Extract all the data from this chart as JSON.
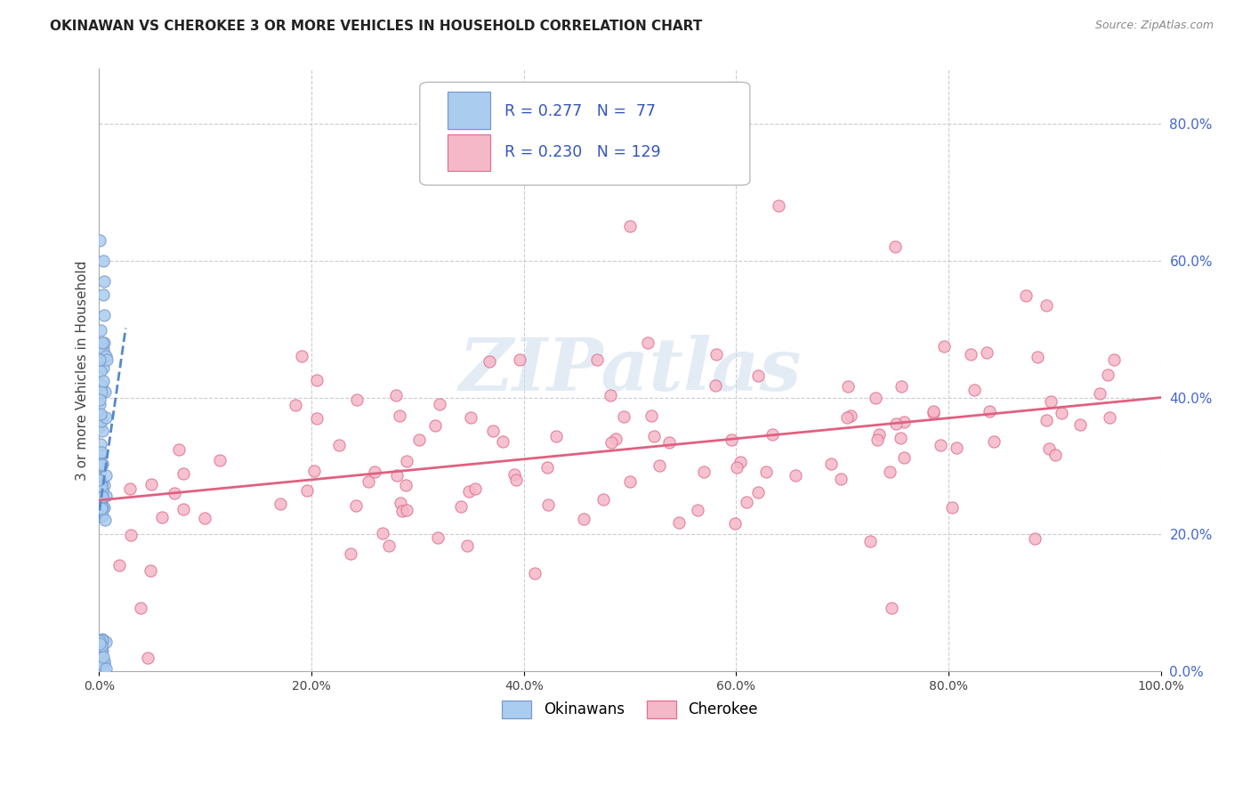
{
  "title": "OKINAWAN VS CHEROKEE 3 OR MORE VEHICLES IN HOUSEHOLD CORRELATION CHART",
  "source": "Source: ZipAtlas.com",
  "ylabel": "3 or more Vehicles in Household",
  "background_color": "#ffffff",
  "grid_color": "#cccccc",
  "okinawan_color": "#aaccee",
  "cherokee_color": "#f5b8c8",
  "okinawan_edge": "#7799cc",
  "cherokee_edge": "#e07090",
  "okinawan_R": 0.277,
  "okinawan_N": 77,
  "cherokee_R": 0.23,
  "cherokee_N": 129,
  "legend_R_color": "#3355bb",
  "watermark": "ZIPatlas",
  "trend_blue": "#5588cc",
  "trend_pink": "#e06080",
  "axis_label_color": "#4466cc",
  "tick_color": "#4466cc",
  "xlim": [
    0.0,
    1.0
  ],
  "ylim": [
    0.0,
    0.88
  ],
  "xticks": [
    0.0,
    0.2,
    0.4,
    0.6,
    0.8,
    1.0
  ],
  "yticks": [
    0.0,
    0.2,
    0.4,
    0.6,
    0.8
  ],
  "cherokee_trend_start": 0.25,
  "cherokee_trend_end": 0.4,
  "okinawan_seed": 77,
  "cherokee_seed": 129
}
